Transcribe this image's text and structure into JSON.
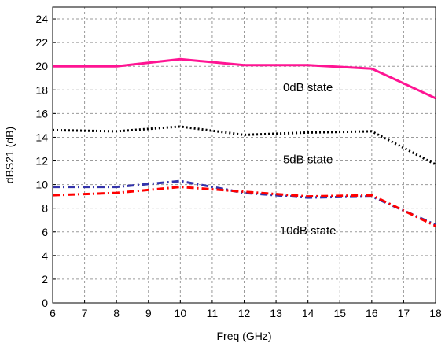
{
  "chart_data": {
    "type": "line",
    "xlabel": "Freq (GHz)",
    "ylabel": "dBS21 (dB)",
    "xlim": [
      6,
      18
    ],
    "ylim": [
      0,
      25
    ],
    "x_ticks": [
      6,
      7,
      8,
      9,
      10,
      11,
      12,
      13,
      14,
      15,
      16,
      17,
      18
    ],
    "y_ticks": [
      0,
      2,
      4,
      6,
      8,
      10,
      12,
      14,
      16,
      18,
      20,
      22,
      24
    ],
    "grid": true,
    "series": [
      {
        "color": "#ff1493",
        "style": "solid",
        "x": [
          6,
          8,
          10,
          12,
          14,
          16,
          18
        ],
        "values": [
          20.0,
          20.0,
          20.6,
          20.1,
          20.1,
          19.8,
          17.3
        ]
      },
      {
        "color": "#000000",
        "style": "dotted",
        "x": [
          6,
          8,
          10,
          12,
          14,
          16,
          18
        ],
        "values": [
          14.6,
          14.5,
          14.9,
          14.2,
          14.4,
          14.5,
          11.7
        ]
      },
      {
        "color": "#3333aa",
        "style": "dashdot",
        "x": [
          6,
          8,
          10,
          12,
          14,
          16,
          18
        ],
        "values": [
          9.8,
          9.8,
          10.3,
          9.3,
          8.9,
          9.0,
          6.6
        ]
      },
      {
        "color": "#ff0000",
        "style": "dashdot",
        "x": [
          6,
          8,
          10,
          12,
          14,
          16,
          18
        ],
        "values": [
          9.1,
          9.3,
          9.8,
          9.4,
          9.0,
          9.1,
          6.5
        ]
      }
    ],
    "annotations": [
      {
        "text": "0dB state",
        "x": 14.0,
        "y": 17.9
      },
      {
        "text": "5dB state",
        "x": 14.0,
        "y": 11.8
      },
      {
        "text": "10dB state",
        "x": 14.0,
        "y": 5.8
      }
    ]
  }
}
